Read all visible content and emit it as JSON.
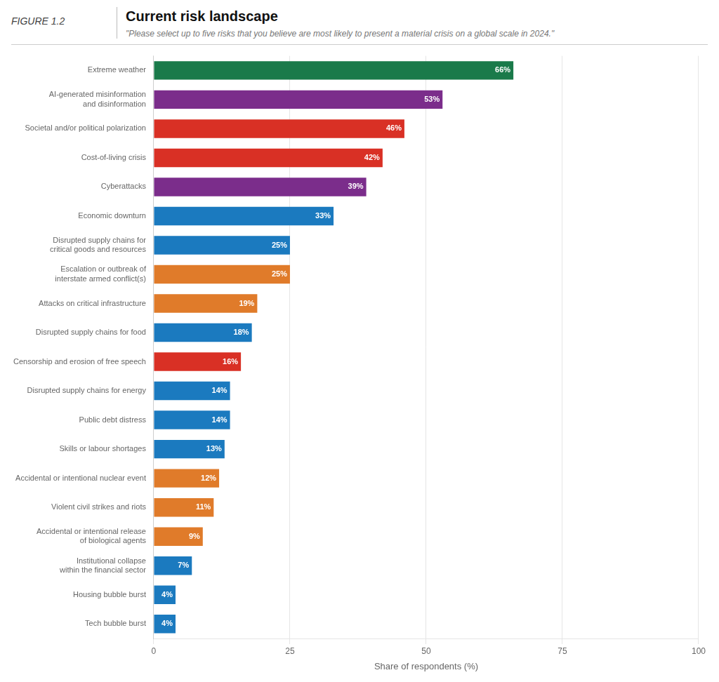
{
  "chart_data": {
    "type": "bar",
    "orientation": "horizontal",
    "title": "Current risk landscape",
    "subtitle": "\"Please select up to five risks that you believe are most likely to present a material crisis on a global scale in 2024.\"",
    "annotations": [
      "FIGURE 1.2"
    ],
    "categories": [
      "Extreme weather",
      "AI-generated misinformation\nand disinformation",
      "Societal and/or political polarization",
      "Cost-of-living crisis",
      "Cyberattacks",
      "Economic downturn",
      "Disrupted supply chains for\ncritical goods and resources",
      "Escalation or outbreak of\ninterstate armed conflict(s)",
      "Attacks on critical infrastructure",
      "Disrupted supply chains for food",
      "Censorship and erosion of free speech",
      "Disrupted supply chains for energy",
      "Public debt distress",
      "Skills or labour shortages",
      "Accidental or intentional nuclear event",
      "Violent civil strikes and riots",
      "Accidental or intentional release\nof biological agents",
      "Institutional collapse\nwithin the financial sector",
      "Housing bubble burst",
      "Tech bubble burst"
    ],
    "values": [
      66,
      53,
      46,
      42,
      39,
      33,
      25,
      25,
      19,
      18,
      16,
      14,
      14,
      13,
      12,
      11,
      9,
      7,
      4,
      4
    ],
    "value_labels": [
      "66%",
      "53%",
      "46%",
      "42%",
      "39%",
      "33%",
      "25%",
      "25%",
      "19%",
      "18%",
      "16%",
      "14%",
      "14%",
      "13%",
      "12%",
      "11%",
      "9%",
      "7%",
      "4%",
      "4%"
    ],
    "data_labels": true,
    "colors": [
      "#1a7a4a",
      "#7b2d8b",
      "#d93025",
      "#d93025",
      "#7b2d8b",
      "#1b7abf",
      "#1b7abf",
      "#e07b2a",
      "#e07b2a",
      "#1b7abf",
      "#d93025",
      "#1b7abf",
      "#1b7abf",
      "#1b7abf",
      "#e07b2a",
      "#e07b2a",
      "#e07b2a",
      "#1b7abf",
      "#1b7abf",
      "#1b7abf"
    ],
    "xlabel": "Share of respondents (%)",
    "xlim": [
      0,
      100
    ],
    "xticks": [
      0,
      25,
      50,
      75,
      100
    ],
    "grid": true
  }
}
